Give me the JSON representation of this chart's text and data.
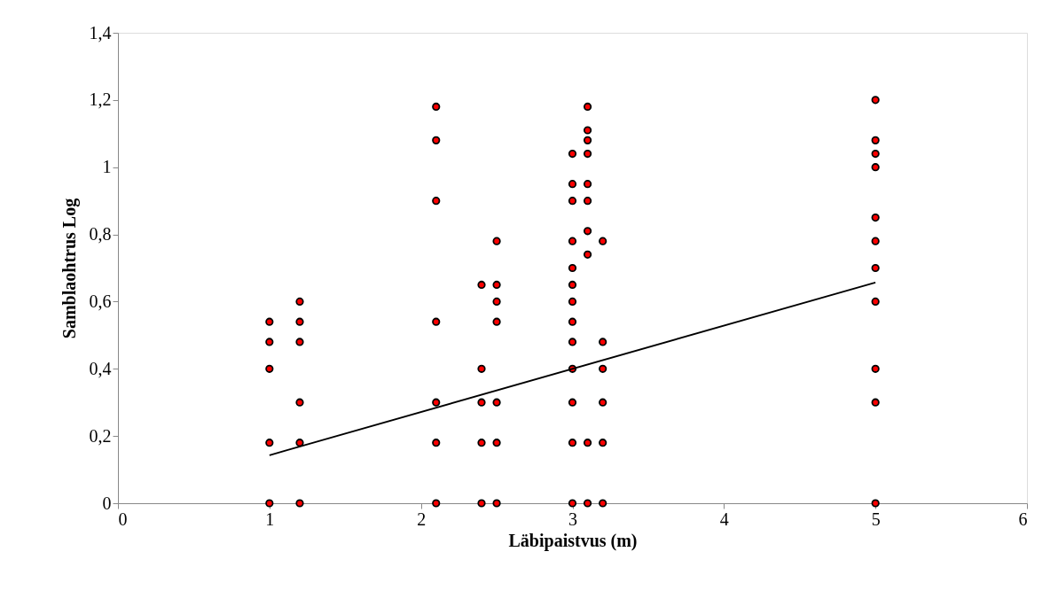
{
  "chart_data": {
    "type": "scatter",
    "xlabel": "Läbipaistvus (m)",
    "ylabel": "Samblaohtrus Log",
    "xlim": [
      0,
      6
    ],
    "ylim": [
      0,
      1.4
    ],
    "xticks": [
      0,
      1,
      2,
      3,
      4,
      5,
      6
    ],
    "yticks": [
      0,
      {
        "value": 0.2,
        "label": "0,2"
      },
      {
        "value": 0.4,
        "label": "0,4"
      },
      {
        "value": 0.6,
        "label": "0,6"
      },
      {
        "value": 0.8,
        "label": "0,8"
      },
      1,
      {
        "value": 1.2,
        "label": "1,2"
      },
      {
        "value": 1.4,
        "label": "1,4"
      }
    ],
    "grid": false,
    "marker": "circle",
    "series": [
      {
        "color": "#ff0000",
        "x": [
          1,
          1,
          1,
          1,
          1,
          1.2,
          1.2,
          1.2,
          1.2,
          1.2,
          1.2,
          2.1,
          2.1,
          2.1,
          2.1,
          2.1,
          2.1,
          2.1,
          2.4,
          2.4,
          2.4,
          2.4,
          2.4,
          2.5,
          2.5,
          2.5,
          2.5,
          2.5,
          2.5,
          2.5,
          3,
          3,
          3,
          3,
          3,
          3,
          3,
          3,
          3,
          3,
          3,
          3,
          3,
          3.1,
          3.1,
          3.1,
          3.1,
          3.1,
          3.1,
          3.1,
          3.1,
          3.1,
          3.1,
          3.2,
          3.2,
          3.2,
          3.2,
          3.2,
          3.2,
          5,
          5,
          5,
          5,
          5,
          5,
          5,
          5,
          5,
          5,
          5
        ],
        "values": [
          0,
          0.18,
          0.4,
          0.48,
          0.54,
          0,
          0.18,
          0.3,
          0.48,
          0.54,
          0.6,
          0,
          0.18,
          0.3,
          0.54,
          0.9,
          1.08,
          1.18,
          0,
          0.18,
          0.3,
          0.4,
          0.65,
          0,
          0.18,
          0.3,
          0.54,
          0.6,
          0.65,
          0.78,
          0,
          0.18,
          0.3,
          0.4,
          0.48,
          0.54,
          0.6,
          0.65,
          0.7,
          0.78,
          0.9,
          0.95,
          1.04,
          0,
          0.18,
          0.74,
          0.81,
          0.9,
          0.95,
          1.04,
          1.08,
          1.11,
          1.18,
          0,
          0.18,
          0.3,
          0.4,
          0.48,
          0.78,
          0,
          0.3,
          0.4,
          0.6,
          0.7,
          0.78,
          0.85,
          1,
          1.04,
          1.08,
          1.2
        ]
      },
      {
        "type": "line",
        "color": "#000000",
        "x": [
          1,
          5
        ],
        "values": [
          0.143,
          0.657
        ],
        "marker": "none",
        "line_style": "solid"
      }
    ]
  }
}
